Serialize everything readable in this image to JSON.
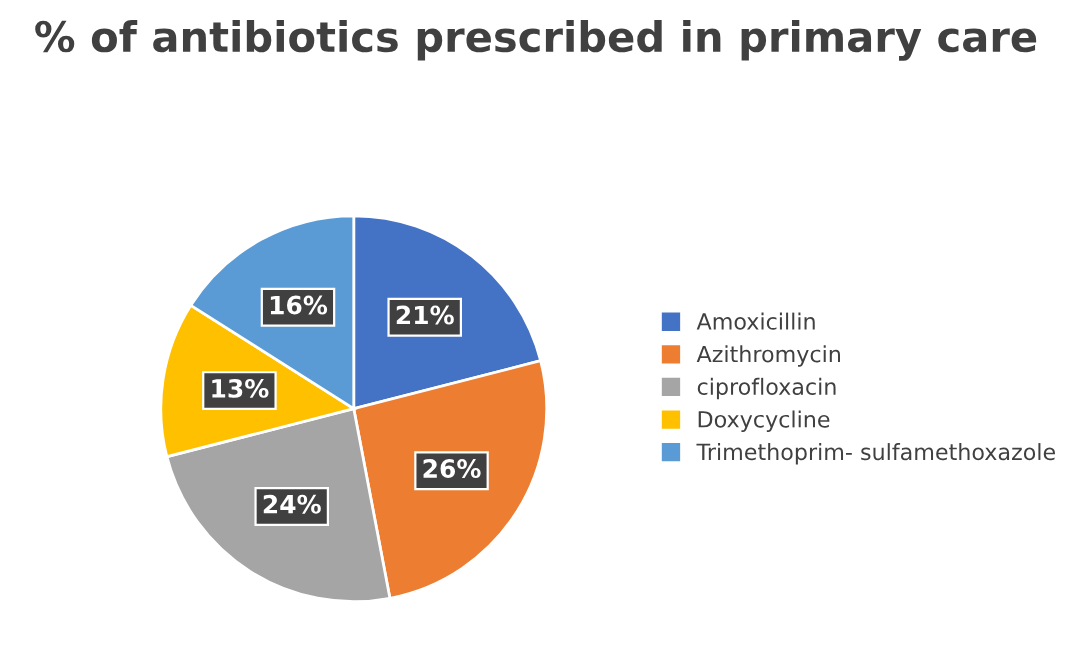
{
  "chart_data": {
    "type": "pie",
    "title": "% of antibiotics prescribed in primary care",
    "categories": [
      "Amoxicillin",
      "Azithromycin",
      "ciprofloxacin",
      "Doxycycline",
      "Trimethoprim- sulfamethoxazole"
    ],
    "values": [
      21,
      26,
      24,
      13,
      16
    ],
    "colors": [
      "#4472c4",
      "#ed7d31",
      "#a5a5a5",
      "#ffc000",
      "#5b9bd5"
    ],
    "value_labels": [
      "21%",
      "26%",
      "24%",
      "13%",
      "16%"
    ],
    "legend": "right"
  }
}
